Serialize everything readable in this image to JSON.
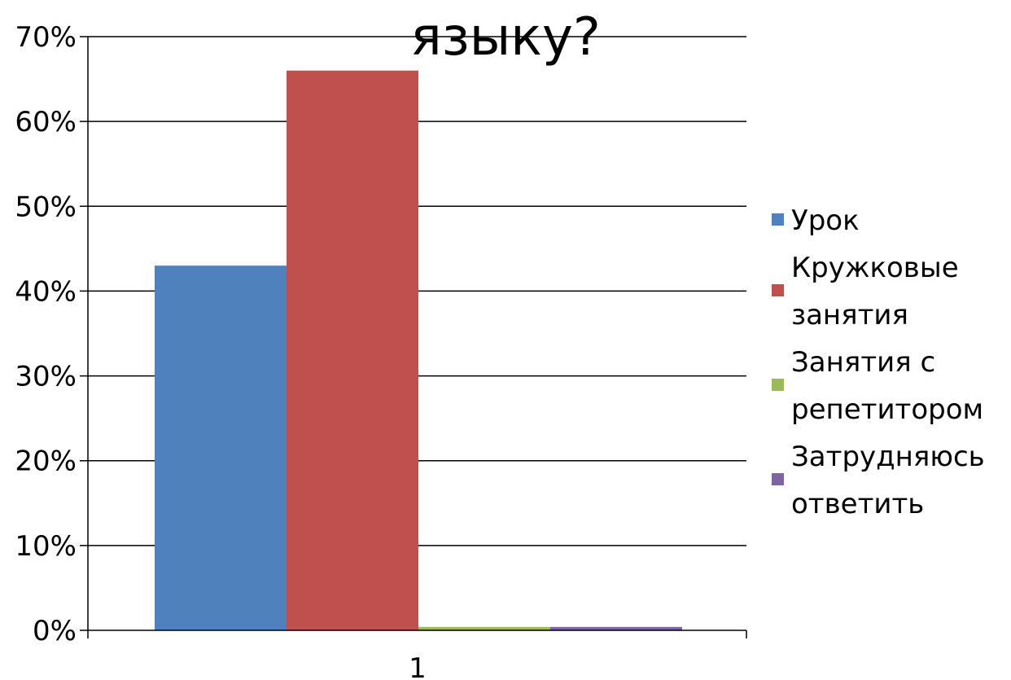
{
  "chart_data": {
    "type": "bar",
    "title": "языку?",
    "categories": [
      "1"
    ],
    "series": [
      {
        "name": "Урок",
        "values": [
          43
        ],
        "color": "#4F81BD"
      },
      {
        "name": "Кружковые занятия",
        "values": [
          66
        ],
        "color": "#C0504D"
      },
      {
        "name": "Занятия с репетитором",
        "values": [
          0.4
        ],
        "color": "#9BBB59"
      },
      {
        "name": "Затрудняюсь ответить",
        "values": [
          0.4
        ],
        "color": "#8064A2"
      }
    ],
    "legend": {
      "position": "right",
      "items": [
        {
          "lines": [
            "Урок"
          ],
          "color": "#4F81BD"
        },
        {
          "lines": [
            "Кружковые",
            "занятия"
          ],
          "color": "#C0504D"
        },
        {
          "lines": [
            "Занятия с",
            "репетитором"
          ],
          "color": "#9BBB59"
        },
        {
          "lines": [
            "Затрудняюсь",
            "ответить"
          ],
          "color": "#8064A2"
        }
      ]
    },
    "y_axis": {
      "ticks": [
        "0%",
        "10%",
        "20%",
        "30%",
        "40%",
        "50%",
        "60%",
        "70%"
      ],
      "ylim": [
        0,
        70
      ]
    },
    "x_axis": {
      "ticks": [
        "1"
      ]
    },
    "grid": true,
    "xlabel": "",
    "ylabel": ""
  }
}
